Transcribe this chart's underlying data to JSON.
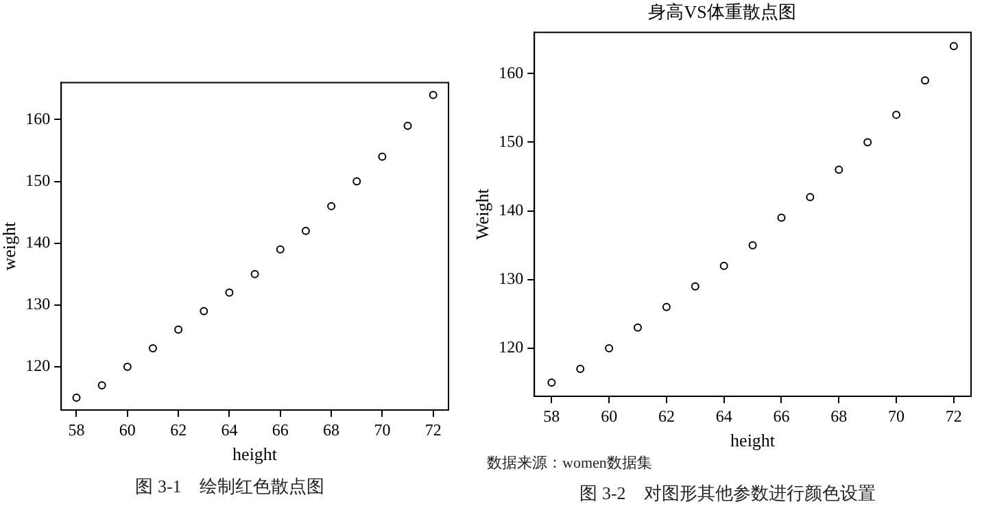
{
  "chart_data": [
    {
      "type": "scatter",
      "xlabel": "height",
      "ylabel": "weight",
      "x": [
        58,
        59,
        60,
        61,
        62,
        63,
        64,
        65,
        66,
        67,
        68,
        69,
        70,
        71,
        72
      ],
      "series": [
        {
          "color": "#000000",
          "values": [
            115,
            117,
            120,
            123,
            126,
            129,
            132,
            135,
            139,
            142,
            146,
            150,
            154,
            159,
            164
          ]
        }
      ],
      "xlim": [
        57.4,
        72.6
      ],
      "ylim": [
        113,
        166
      ],
      "xticks": [
        58,
        60,
        62,
        64,
        66,
        68,
        70,
        72
      ],
      "yticks": [
        120,
        130,
        140,
        150,
        160
      ],
      "marker": "circle",
      "grid": false,
      "legend": false,
      "annotations": [
        "图 3-1　绘制红色散点图"
      ]
    },
    {
      "type": "scatter",
      "title": "身高VS体重散点图",
      "xlabel": "height",
      "ylabel": "Weight",
      "x": [
        58,
        59,
        60,
        61,
        62,
        63,
        64,
        65,
        66,
        67,
        68,
        69,
        70,
        71,
        72
      ],
      "series": [
        {
          "color": "#000000",
          "values": [
            115,
            117,
            120,
            123,
            126,
            129,
            132,
            135,
            139,
            142,
            146,
            150,
            154,
            159,
            164
          ]
        }
      ],
      "xlim": [
        57.4,
        72.6
      ],
      "ylim": [
        113,
        166
      ],
      "xticks": [
        58,
        60,
        62,
        64,
        66,
        68,
        70,
        72
      ],
      "yticks": [
        120,
        130,
        140,
        150,
        160
      ],
      "marker": "circle",
      "grid": false,
      "legend": false,
      "annotations": [
        "数据来源：women数据集",
        "图 3-2　对图形其他参数进行颜色设置"
      ]
    }
  ]
}
